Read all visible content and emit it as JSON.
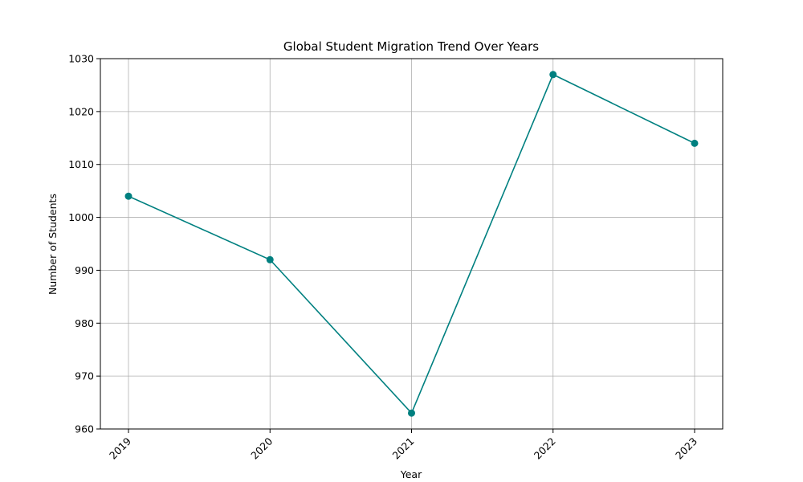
{
  "chart_data": {
    "type": "line",
    "title": "Global Student Migration Trend Over Years",
    "xlabel": "Year",
    "ylabel": "Number of Students",
    "x": [
      "2019",
      "2020",
      "2021",
      "2022",
      "2023"
    ],
    "series": [
      {
        "values": [
          1004,
          992,
          963,
          1027,
          1014
        ],
        "color": "#008080",
        "marker": "circle"
      }
    ],
    "ylim": [
      960,
      1030
    ],
    "yticks": [
      960,
      970,
      980,
      990,
      1000,
      1010,
      1020,
      1030
    ],
    "grid": true,
    "x_tick_rotation": 45
  }
}
